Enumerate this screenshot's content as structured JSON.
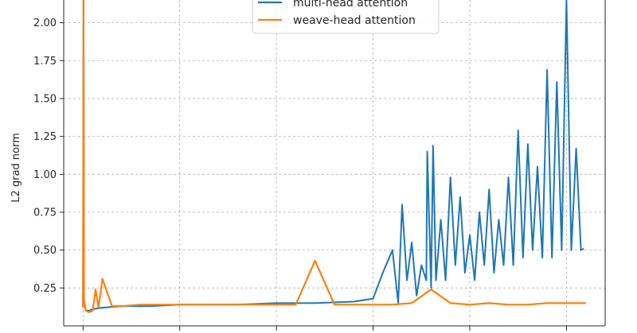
{
  "chart_data": {
    "type": "line",
    "title": "",
    "xlabel": "",
    "ylabel": "L2 grad norm",
    "ylim": [
      0.0,
      2.15
    ],
    "xlim": [
      -200,
      5400
    ],
    "yticks": [
      0.25,
      0.5,
      0.75,
      1.0,
      1.25,
      1.5,
      1.75,
      2.0
    ],
    "ytick_labels": [
      "0.25",
      "0.50",
      "0.75",
      "1.00",
      "1.25",
      "1.50",
      "1.75",
      "2.00"
    ],
    "xticks": [
      0,
      1000,
      2000,
      3000,
      4000,
      5000
    ],
    "grid": true,
    "legend": "top-center",
    "series": [
      {
        "name": "multi-head attention",
        "color": "#1f77b4",
        "x": [
          0,
          5,
          10,
          30,
          60,
          100,
          200,
          400,
          700,
          1000,
          1300,
          1600,
          2000,
          2400,
          2800,
          3000,
          3100,
          3200,
          3260,
          3300,
          3350,
          3400,
          3450,
          3500,
          3550,
          3560,
          3600,
          3620,
          3650,
          3700,
          3750,
          3800,
          3850,
          3900,
          3950,
          4000,
          4050,
          4100,
          4150,
          4200,
          4250,
          4300,
          4350,
          4400,
          4450,
          4500,
          4550,
          4600,
          4650,
          4700,
          4750,
          4800,
          4850,
          4900,
          4950,
          5000,
          5050,
          5100,
          5150,
          5180
        ],
        "y": [
          0.12,
          2.15,
          0.17,
          0.1,
          0.1,
          0.11,
          0.12,
          0.13,
          0.13,
          0.14,
          0.14,
          0.14,
          0.15,
          0.15,
          0.16,
          0.18,
          0.35,
          0.5,
          0.15,
          0.8,
          0.3,
          0.55,
          0.2,
          0.4,
          0.3,
          1.15,
          0.25,
          1.19,
          0.3,
          0.7,
          0.3,
          0.98,
          0.4,
          0.85,
          0.35,
          0.6,
          0.3,
          0.75,
          0.4,
          0.9,
          0.35,
          0.7,
          0.4,
          0.98,
          0.4,
          1.29,
          0.45,
          1.2,
          0.5,
          1.05,
          0.45,
          1.69,
          0.45,
          1.61,
          0.5,
          2.15,
          0.5,
          1.17,
          0.5,
          0.51
        ]
      },
      {
        "name": "weave-head attention",
        "color": "#ff7f0e",
        "x": [
          0,
          5,
          10,
          30,
          60,
          100,
          130,
          160,
          200,
          300,
          400,
          600,
          800,
          1000,
          1200,
          1400,
          1600,
          1800,
          2000,
          2200,
          2400,
          2600,
          2800,
          3000,
          3200,
          3400,
          3600,
          3800,
          4000,
          4200,
          4400,
          4600,
          4800,
          5000,
          5200
        ],
        "y": [
          0.12,
          2.15,
          0.16,
          0.1,
          0.09,
          0.1,
          0.24,
          0.12,
          0.31,
          0.13,
          0.13,
          0.14,
          0.14,
          0.14,
          0.14,
          0.14,
          0.14,
          0.14,
          0.14,
          0.14,
          0.43,
          0.14,
          0.14,
          0.14,
          0.14,
          0.15,
          0.24,
          0.15,
          0.14,
          0.15,
          0.14,
          0.14,
          0.15,
          0.15,
          0.15
        ]
      }
    ]
  }
}
